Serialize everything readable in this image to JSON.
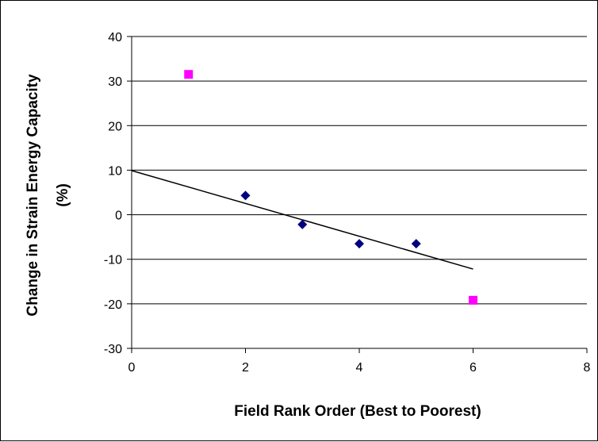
{
  "chart_data": {
    "type": "scatter",
    "xlabel": "Field Rank Order (Best to Poorest)",
    "ylabel_lines": [
      "Change in Strain Energy Capacity",
      "(%)"
    ],
    "xlim": [
      0,
      8
    ],
    "ylim": [
      -30,
      40
    ],
    "x_ticks": [
      0,
      2,
      4,
      6,
      8
    ],
    "y_ticks": [
      40,
      30,
      20,
      10,
      0,
      -10,
      -20,
      -30
    ],
    "grid": "horizontal",
    "legend": "none",
    "series": [
      {
        "marker": "diamond",
        "color": "#000080",
        "points": [
          {
            "x": 2,
            "y": 4.3
          },
          {
            "x": 3,
            "y": -2.2
          },
          {
            "x": 4,
            "y": -6.5
          },
          {
            "x": 5,
            "y": -6.5
          }
        ]
      },
      {
        "marker": "square",
        "color": "#ff00ff",
        "points": [
          {
            "x": 1,
            "y": 31.5
          },
          {
            "x": 6,
            "y": -19.2
          }
        ]
      }
    ],
    "trendline": {
      "color": "#000000",
      "points": [
        {
          "x": 0,
          "y": 9.9
        },
        {
          "x": 6,
          "y": -12.2
        }
      ]
    }
  }
}
